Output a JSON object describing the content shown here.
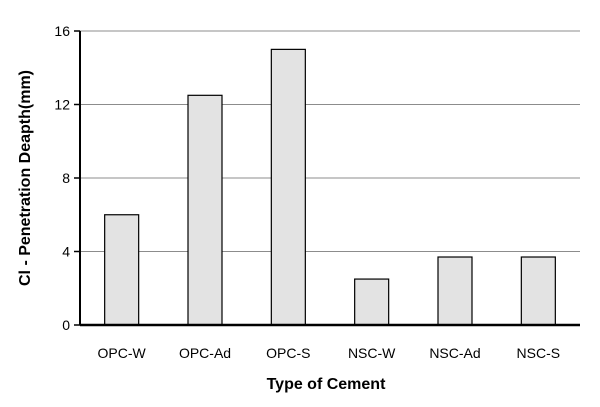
{
  "chart_data": {
    "type": "bar",
    "title": "",
    "xlabel": "Type of Cement",
    "ylabel": "Cl - Penetration Deapth(mm)",
    "categories": [
      "OPC-W",
      "OPC-Ad",
      "OPC-S",
      "NSC-W",
      "NSC-Ad",
      "NSC-S"
    ],
    "values": [
      6,
      12.5,
      15,
      2.5,
      3.7,
      3.7
    ],
    "ylim": [
      0,
      16
    ],
    "yticks": [
      "0",
      "4",
      "8",
      "12",
      "16"
    ],
    "grid": true,
    "legend": "none",
    "colors": {
      "bar_fill": "#e3e3e3",
      "bar_stroke": "#000000",
      "grid": "#8c8c8c",
      "axis": "#000000"
    }
  }
}
